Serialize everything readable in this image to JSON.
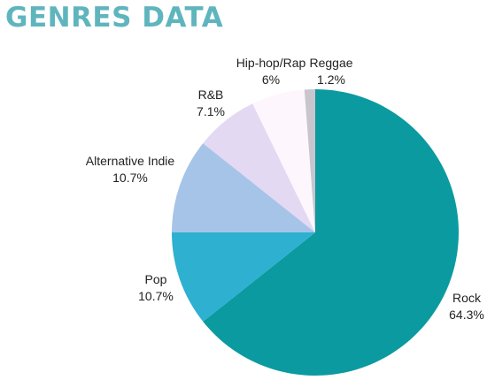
{
  "chart_data": {
    "type": "pie",
    "title": "GENRES DATA",
    "categories": [
      "Rock",
      "Pop",
      "Alternative Indie",
      "R&B",
      "Hip-hop/Rap",
      "Reggae"
    ],
    "values": [
      64.3,
      10.7,
      10.7,
      7.1,
      6,
      1.2
    ],
    "value_labels": [
      "64.3%",
      "10.7%",
      "10.7%",
      "7.1%",
      "6%",
      "1.2%"
    ],
    "colors": [
      "#0b9aa0",
      "#2eb0d0",
      "#a6c4e8",
      "#e3d9f2",
      "#fdf6fc",
      "#c9c5cd"
    ],
    "title_color": "#5fb5bd",
    "start_angle": "12 o'clock",
    "direction": "clockwise",
    "legend": "none (labels next to slices)"
  }
}
